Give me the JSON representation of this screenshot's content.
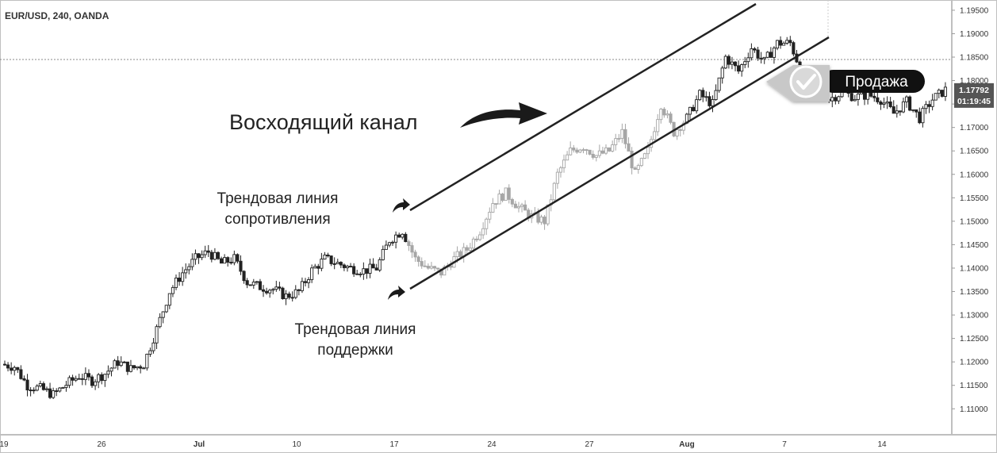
{
  "header": {
    "symbol_text": "EUR/USD, 240, OANDA"
  },
  "annotations": {
    "channel_label": "Восходящий канал",
    "resistance_label": [
      "Трендовая линия",
      "сопротивления"
    ],
    "support_label": [
      "Трендовая линия",
      "поддержки"
    ],
    "sell_label": "Продажа"
  },
  "price_badge": {
    "price": "1.17792",
    "countdown": "01:19:45",
    "color": "#555555"
  },
  "chart_data": {
    "type": "candlestick",
    "symbol": "EUR/USD",
    "timeframe": "240",
    "source": "OANDA",
    "ylim": [
      1.107,
      1.196
    ],
    "y_ticks": [
      "1.19500",
      "1.19000",
      "1.18500",
      "1.18000",
      "1.17500",
      "1.17000",
      "1.16500",
      "1.16000",
      "1.15500",
      "1.15000",
      "1.14500",
      "1.14000",
      "1.13500",
      "1.13000",
      "1.12500",
      "1.12000",
      "1.11500",
      "1.11000"
    ],
    "x_ticks": [
      "19",
      "26",
      "Jul",
      "10",
      "17",
      "24",
      "27",
      "Aug",
      "7",
      "14"
    ],
    "highlighted_x_ticks": [
      "Jul",
      "Aug"
    ],
    "last_price": 1.17792,
    "dotted_line_price": 1.1845,
    "ohlc_path": [
      1.1195,
      1.119,
      1.115,
      1.1143,
      1.113,
      1.1152,
      1.117,
      1.116,
      1.1175,
      1.12,
      1.1185,
      1.1195,
      1.127,
      1.135,
      1.139,
      1.142,
      1.1435,
      1.141,
      1.142,
      1.137,
      1.136,
      1.1355,
      1.134,
      1.135,
      1.1395,
      1.142,
      1.141,
      1.14,
      1.1395,
      1.14,
      1.146,
      1.148,
      1.142,
      1.14,
      1.139,
      1.142,
      1.144,
      1.148,
      1.154,
      1.156,
      1.153,
      1.151,
      1.15,
      1.16,
      1.165,
      1.166,
      1.164,
      1.165,
      1.169,
      1.16,
      1.165,
      1.175,
      1.169,
      1.172,
      1.177,
      1.175,
      1.185,
      1.182,
      1.187,
      1.184,
      1.188,
      1.188,
      1.181,
      1.1795,
      1.176,
      1.1775,
      1.1765,
      1.177,
      1.176,
      1.173,
      1.1755,
      1.172,
      1.176,
      1.178
    ],
    "channel": {
      "upper_trendline": {
        "from": {
          "x": "Jul 15",
          "y": 1.1552
        },
        "to": {
          "x": "Aug 3",
          "y": 1.196
        }
      },
      "lower_trendline": {
        "from": {
          "x": "Jul 15",
          "y": 1.137
        },
        "to": {
          "x": "Aug 10",
          "y": 1.1885
        }
      }
    }
  }
}
